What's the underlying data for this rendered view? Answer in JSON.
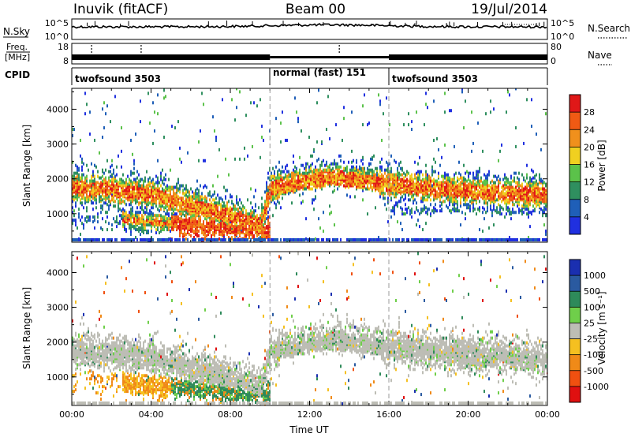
{
  "header": {
    "station": "Inuvik (fitACF)",
    "beam": "Beam 00",
    "date": "19/Jul/2014"
  },
  "top_panels": {
    "nsky_label": "N.Sky",
    "nsky_ticks": [
      "10^5",
      "10^0"
    ],
    "nsearch_label": "N.Search",
    "nsearch_ticks": [
      "10^5",
      "10^0"
    ],
    "freq_label": "Freq.",
    "freq_unit": "[MHz]",
    "freq_ticks": [
      "18",
      "8"
    ],
    "nave_label": "Nave",
    "nave_ticks": [
      "80",
      "0"
    ],
    "cpid_label": "CPID",
    "cpid_segments": [
      {
        "name": "twofsound 3503",
        "start": 0,
        "end": 10
      },
      {
        "name": "normal (fast) 151",
        "start": 10,
        "end": 16
      },
      {
        "name": "twofsound 3503",
        "start": 16,
        "end": 24
      }
    ]
  },
  "chart_data": [
    {
      "type": "heatmap",
      "name": "power",
      "ylabel": "Slant Range [km]",
      "yticks": [
        "1000",
        "2000",
        "3000",
        "4000"
      ],
      "ylim": [
        180,
        4600
      ],
      "xlim": [
        0,
        24
      ],
      "colorbar": {
        "label": "Power [dB]",
        "ticks": [
          "4",
          "8",
          "12",
          "16",
          "20",
          "24",
          "28"
        ],
        "colors": [
          "#2030e0",
          "#1f5fb8",
          "#2f8f5f",
          "#5bc24a",
          "#f0d020",
          "#f0901c",
          "#f05a14",
          "#e01818"
        ]
      },
      "band_center_km": [
        {
          "x": 0,
          "y": 1700
        },
        {
          "x": 2,
          "y": 1650
        },
        {
          "x": 4,
          "y": 1500
        },
        {
          "x": 6,
          "y": 1200
        },
        {
          "x": 8,
          "y": 900
        },
        {
          "x": 9.5,
          "y": 600
        },
        {
          "x": 10,
          "y": 1700
        },
        {
          "x": 13,
          "y": 2000
        },
        {
          "x": 16,
          "y": 1800
        },
        {
          "x": 20,
          "y": 1600
        },
        {
          "x": 24,
          "y": 1500
        }
      ]
    },
    {
      "type": "heatmap",
      "name": "velocity",
      "xlabel": "Time UT",
      "ylabel": "Slant Range [km]",
      "yticks": [
        "1000",
        "2000",
        "3000",
        "4000"
      ],
      "xticks": [
        "00:00",
        "04:00",
        "08:00",
        "12:00",
        "16:00",
        "20:00",
        "00:00"
      ],
      "ylim": [
        180,
        4600
      ],
      "xlim": [
        0,
        24
      ],
      "colorbar": {
        "label": "Velocity [m s⁻¹]",
        "ticks": [
          "1000",
          "500",
          "100",
          "25",
          "-25",
          "-100",
          "-500",
          "-1000"
        ],
        "colors": [
          "#1a2fb0",
          "#2a5aa0",
          "#2e8a5a",
          "#6fcf4a",
          "#bdbdb5",
          "#f5c020",
          "#f08a18",
          "#f05010",
          "#e01010"
        ]
      }
    }
  ],
  "colors": {
    "accent_red": "#e01818",
    "accent_blue": "#2030e0",
    "ground_gray": "#bdbdb5"
  }
}
